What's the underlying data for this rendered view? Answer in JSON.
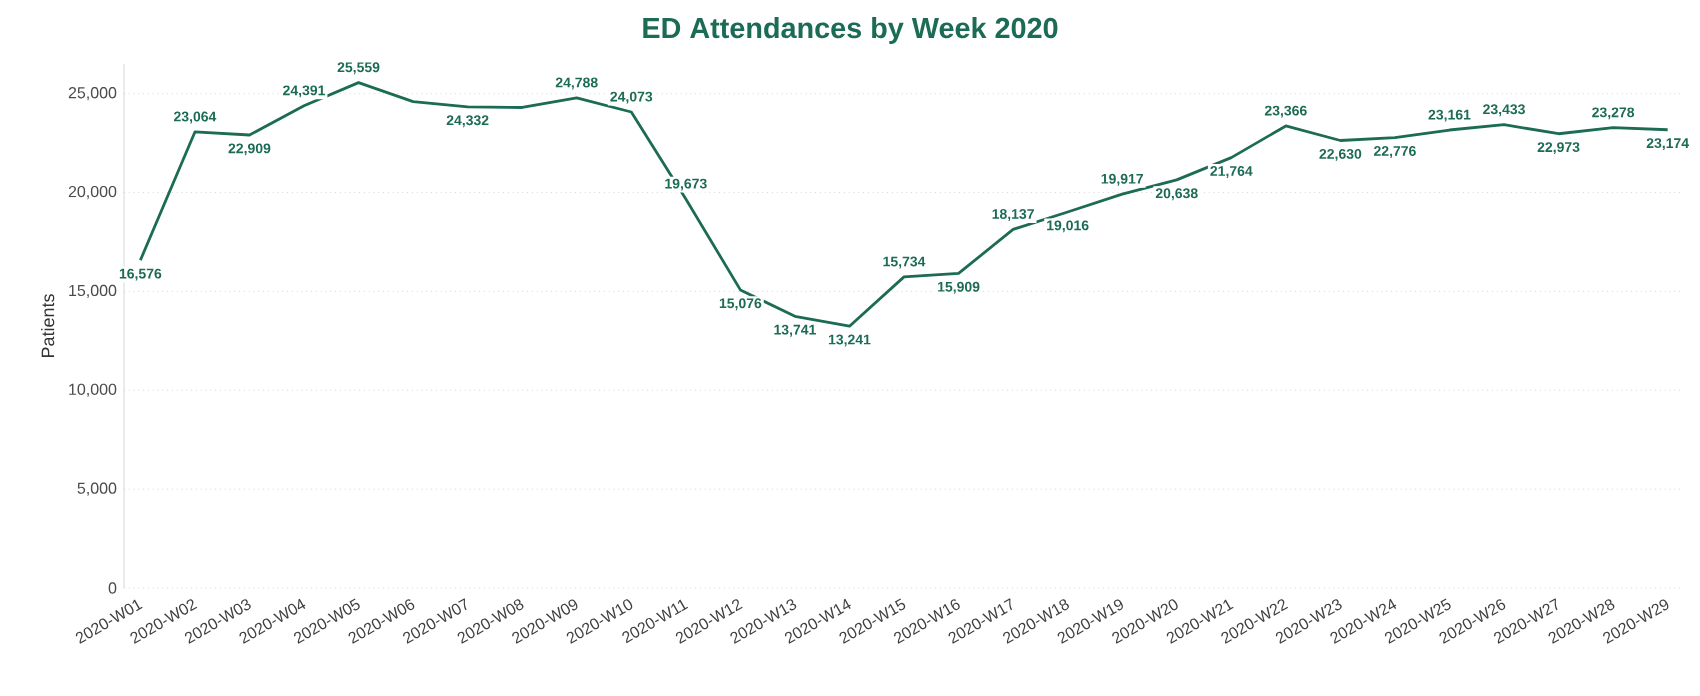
{
  "chart_data": {
    "type": "line",
    "title": "ED Attendances by Week 2020",
    "ylabel": "Patients",
    "categories": [
      "2020-W01",
      "2020-W02",
      "2020-W03",
      "2020-W04",
      "2020-W05",
      "2020-W06",
      "2020-W07",
      "2020-W08",
      "2020-W09",
      "2020-W10",
      "2020-W11",
      "2020-W12",
      "2020-W13",
      "2020-W14",
      "2020-W15",
      "2020-W16",
      "2020-W17",
      "2020-W18",
      "2020-W19",
      "2020-W20",
      "2020-W21",
      "2020-W22",
      "2020-W23",
      "2020-W24",
      "2020-W25",
      "2020-W26",
      "2020-W27",
      "2020-W28",
      "2020-W29"
    ],
    "values": [
      16576,
      23064,
      22909,
      24391,
      25559,
      24600,
      24332,
      24300,
      24788,
      24073,
      19673,
      15076,
      13741,
      13241,
      15734,
      15909,
      18137,
      19016,
      19917,
      20638,
      21764,
      23366,
      22630,
      22776,
      23161,
      23433,
      22973,
      23278,
      23174
    ],
    "value_labels": [
      "16,576",
      "23,064",
      "22,909",
      "24,391",
      "25,559",
      null,
      "24,332",
      null,
      "24,788",
      "24,073",
      "19,673",
      "15,076",
      "13,741",
      "13,241",
      "15,734",
      "15,909",
      "18,137",
      "19,016",
      "19,917",
      "20,638",
      "21,764",
      "23,366",
      "22,630",
      "22,776",
      "23,161",
      "23,433",
      "22,973",
      "23,278",
      "23,174"
    ],
    "color": "#1b6b55",
    "ylim": [
      0,
      26500
    ],
    "yticks": [
      {
        "value": 0,
        "label": "0"
      },
      {
        "value": 5000,
        "label": "5,000"
      },
      {
        "value": 10000,
        "label": "10,000"
      },
      {
        "value": 15000,
        "label": "15,000"
      },
      {
        "value": 20000,
        "label": "20,000"
      },
      {
        "value": 25000,
        "label": "25,000"
      }
    ],
    "grid": "y",
    "marker": "none",
    "line_style": "solid"
  }
}
